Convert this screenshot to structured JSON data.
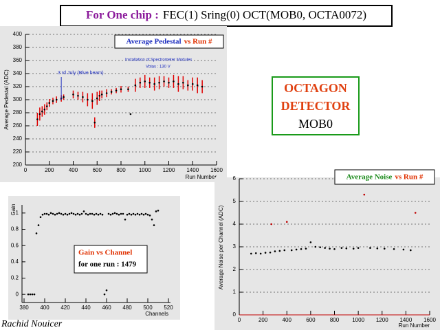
{
  "header": [
    "For One chip :",
    "FEC(1) Sring(0) OCT(MOB0, OCTA0072)"
  ],
  "octagon_box": [
    "OCTAGON",
    "DETECTOR",
    "MOB0"
  ],
  "author": "Rachid Nouicer",
  "chart_data": [
    {
      "type": "scatter",
      "title": [
        "Average Pedestal",
        "vs Run #"
      ],
      "title_colors": [
        "#1f2fbf",
        "#e03000"
      ],
      "x_label": "Run Number",
      "y_label": "Average Pedestal (ADC)",
      "annotations": [
        "3 rd July (Blue beam)",
        "Installation of Spectrometer Modules",
        "Vbias : 130 V"
      ],
      "x": [
        100,
        120,
        140,
        160,
        180,
        200,
        230,
        260,
        300,
        320,
        400,
        440,
        480,
        520,
        560,
        580,
        600,
        620,
        640,
        680,
        720,
        760,
        800,
        860,
        880,
        920,
        960,
        1000,
        1040,
        1080,
        1120,
        1160,
        1200,
        1240,
        1280,
        1320,
        1360,
        1400,
        1440,
        1480
      ],
      "values": [
        270,
        278,
        282,
        285,
        290,
        295,
        298,
        300,
        302,
        304,
        308,
        306,
        304,
        300,
        298,
        265,
        302,
        306,
        308,
        310,
        312,
        314,
        316,
        316,
        278,
        322,
        326,
        328,
        326,
        324,
        326,
        328,
        326,
        328,
        324,
        326,
        322,
        324,
        322,
        320
      ],
      "errors": [
        10,
        10,
        8,
        8,
        6,
        6,
        5,
        5,
        5,
        4,
        6,
        6,
        8,
        10,
        12,
        8,
        10,
        8,
        6,
        6,
        4,
        4,
        5,
        4,
        0,
        10,
        8,
        10,
        8,
        10,
        10,
        8,
        8,
        10,
        12,
        10,
        8,
        10,
        12,
        10
      ],
      "color": "#000000",
      "error_color": "#e00000",
      "xlim": [
        0,
        1600
      ],
      "xticks": [
        0,
        200,
        400,
        600,
        800,
        1000,
        1200,
        1400,
        1600
      ],
      "ylim": [
        200,
        400
      ],
      "yticks": [
        200,
        220,
        240,
        260,
        280,
        300,
        320,
        340,
        360,
        380,
        400
      ],
      "grid": true
    },
    {
      "type": "scatter",
      "title": [
        "Gain vs Channel",
        "for one run : 1479"
      ],
      "title_colors": [
        "#e03000",
        "#000000"
      ],
      "x_label": "Channels",
      "y_label": "Gain",
      "x": [
        384,
        386,
        388,
        390,
        392,
        394,
        396,
        398,
        400,
        402,
        404,
        406,
        408,
        410,
        412,
        414,
        416,
        418,
        420,
        422,
        424,
        426,
        428,
        430,
        432,
        434,
        436,
        438,
        440,
        442,
        444,
        446,
        448,
        450,
        452,
        454,
        456,
        458,
        460,
        462,
        464,
        466,
        468,
        470,
        472,
        474,
        476,
        478,
        480,
        482,
        484,
        486,
        488,
        490,
        492,
        494,
        496,
        498,
        500,
        502,
        504,
        506,
        508,
        510
      ],
      "values": [
        0,
        0,
        0,
        0,
        0.75,
        0.85,
        0.95,
        0.98,
        0.99,
        0.99,
        0.98,
        1.0,
        0.99,
        0.98,
        0.99,
        1.0,
        0.99,
        0.98,
        0.99,
        0.98,
        0.99,
        1.0,
        0.99,
        0.98,
        0.99,
        0.98,
        0.99,
        1.02,
        0.99,
        0.98,
        0.99,
        0.99,
        0.98,
        0.99,
        0.98,
        0.99,
        0.98,
        0,
        0.05,
        0.99,
        0.98,
        0.99,
        1.0,
        0.99,
        0.98,
        0.99,
        0.99,
        0.92,
        0.98,
        0.99,
        0.98,
        0.99,
        0.98,
        0.99,
        0.98,
        0.99,
        0.98,
        0.99,
        0.98,
        0.97,
        0.92,
        0.85,
        1.02,
        1.03
      ],
      "color": "#000000",
      "xlim": [
        378,
        522
      ],
      "xticks": [
        380,
        400,
        420,
        440,
        460,
        480,
        500,
        520
      ],
      "ylim": [
        -0.1,
        1.1
      ],
      "yticks": [
        0,
        0.2,
        0.4,
        0.6,
        0.8,
        1
      ],
      "grid": false
    },
    {
      "type": "scatter",
      "title": [
        "Average Noise",
        "vs Run #"
      ],
      "title_colors": [
        "#1a8a1a",
        "#e03000"
      ],
      "x_label": "Run Number",
      "y_label": "Average Noise per Channel (ADC)",
      "x": [
        100,
        140,
        180,
        220,
        260,
        270,
        300,
        340,
        380,
        400,
        440,
        480,
        520,
        560,
        600,
        640,
        680,
        720,
        760,
        800,
        860,
        900,
        960,
        1000,
        1050,
        1100,
        1160,
        1220,
        1300,
        1380,
        1440,
        1480
      ],
      "values": [
        2.7,
        2.72,
        2.7,
        2.74,
        2.75,
        4.0,
        2.8,
        2.82,
        2.85,
        4.1,
        2.85,
        2.88,
        2.9,
        2.92,
        3.2,
        3.0,
        2.98,
        2.95,
        2.92,
        2.9,
        2.95,
        2.93,
        2.92,
        2.95,
        5.3,
        2.95,
        2.93,
        2.92,
        2.9,
        2.88,
        2.85,
        4.5
      ],
      "color": "#000000",
      "outlier_color": "#c00000",
      "xlim": [
        0,
        1600
      ],
      "xticks": [
        0,
        200,
        400,
        600,
        800,
        1000,
        1200,
        1400,
        1600
      ],
      "ylim": [
        0,
        6
      ],
      "yticks": [
        0,
        1,
        2,
        3,
        4,
        5,
        6
      ],
      "grid": true
    }
  ]
}
